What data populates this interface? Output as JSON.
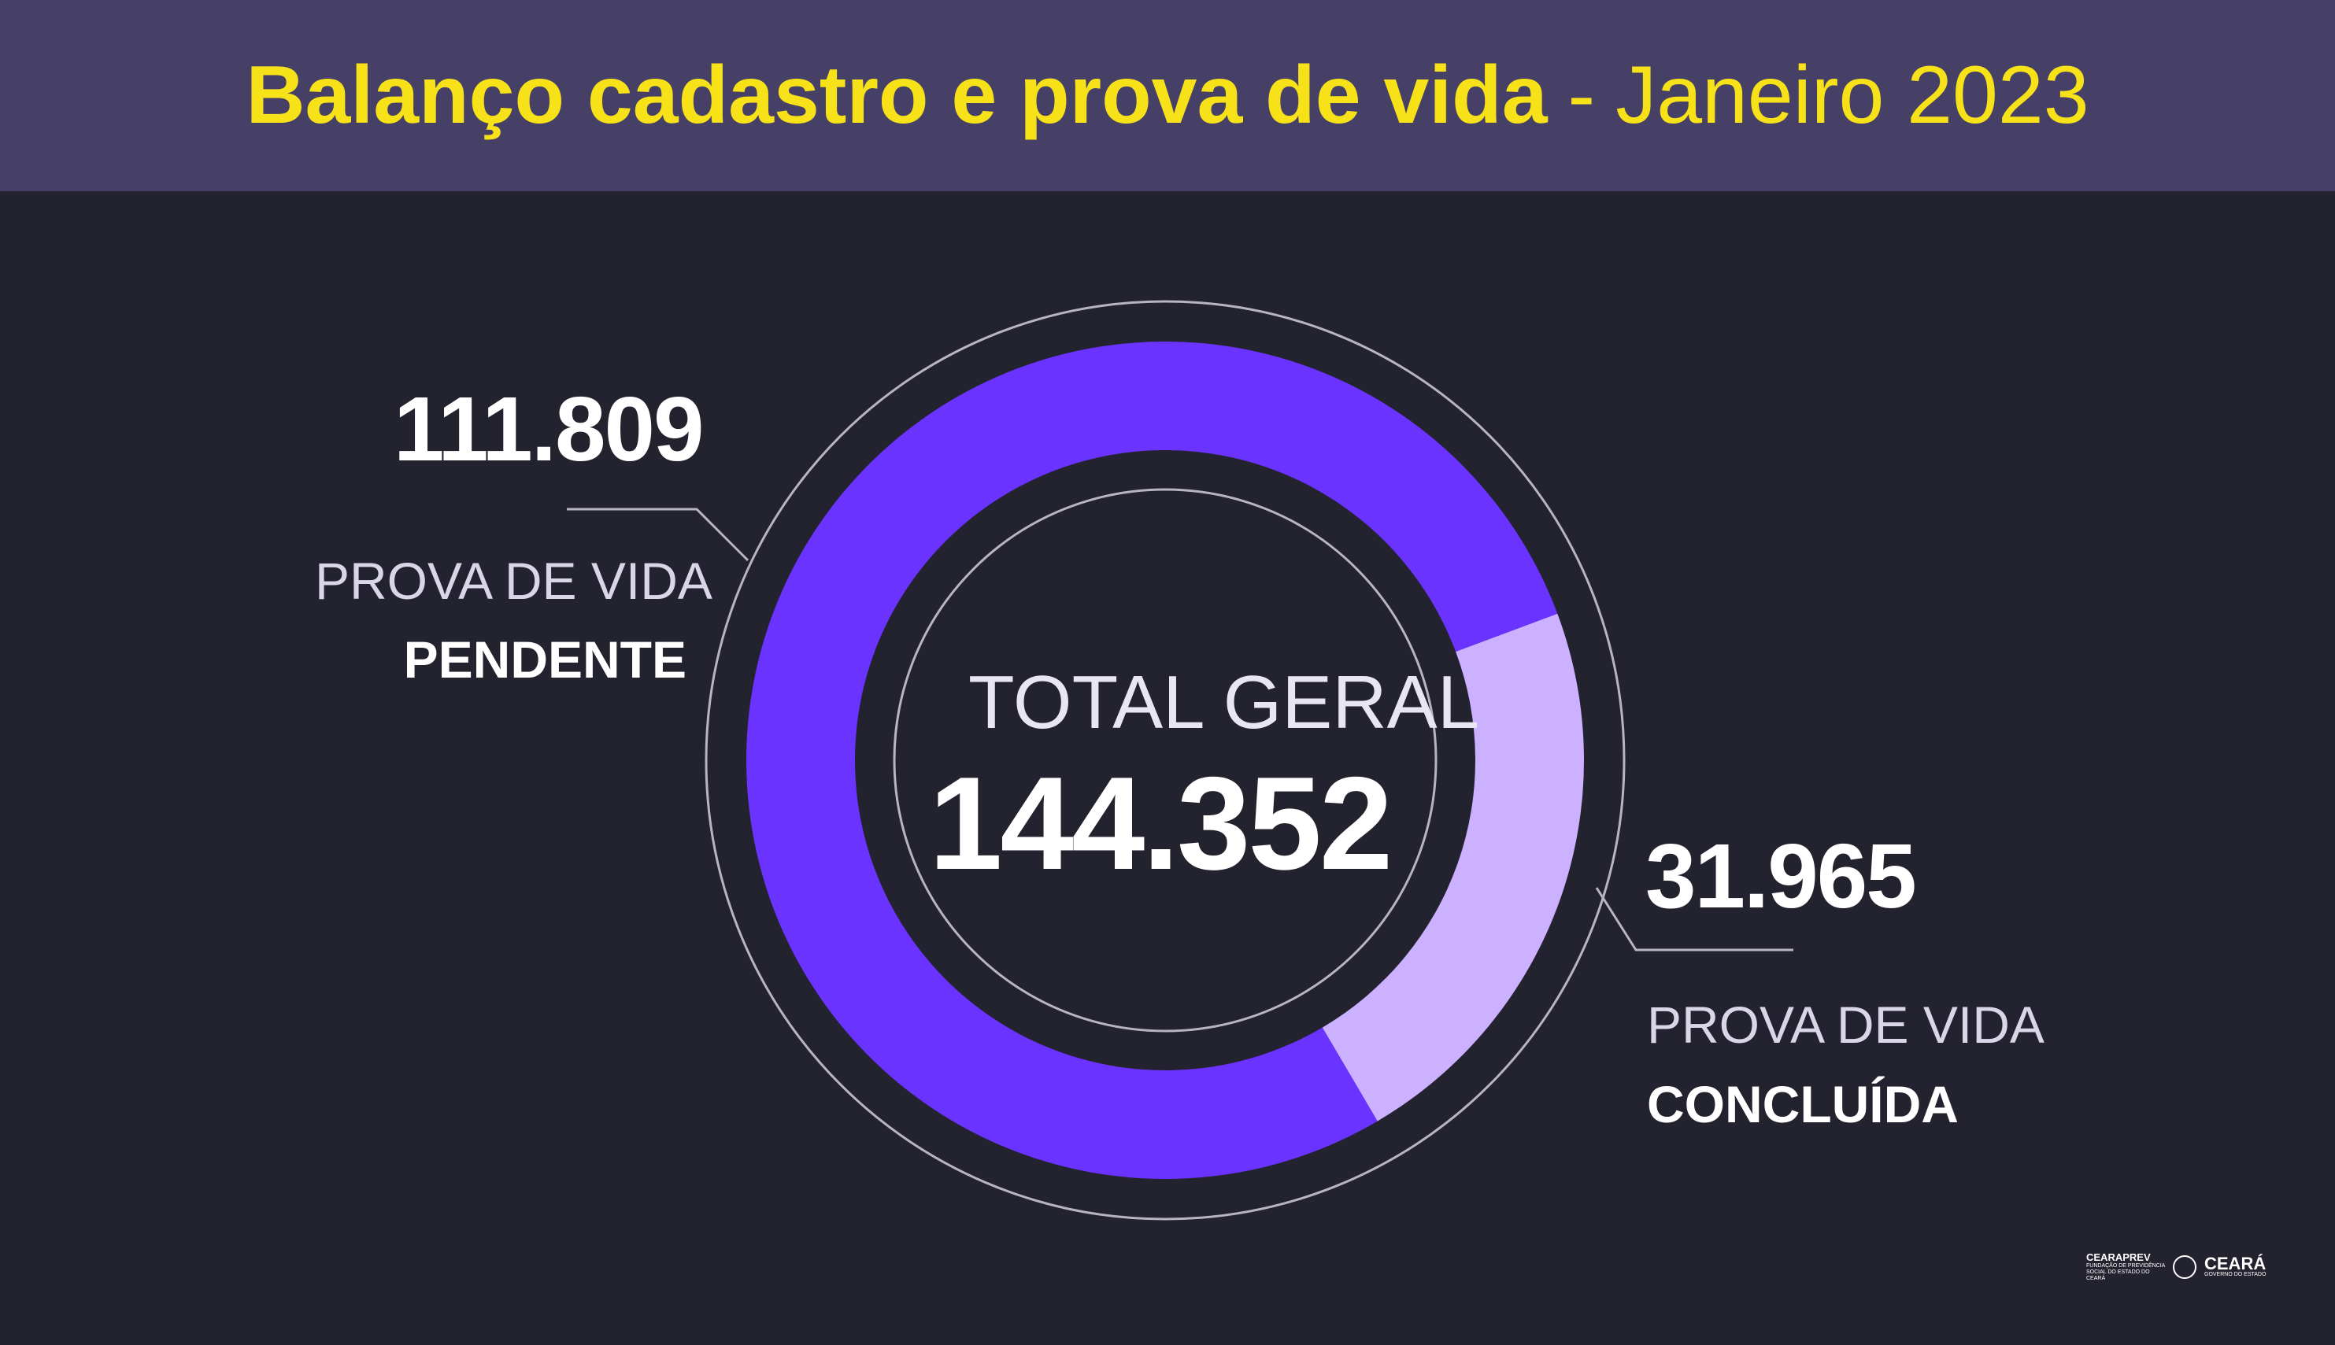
{
  "header": {
    "title_bold": "Balanço cadastro e prova de vida",
    "separator": "-",
    "title_light": "Janeiro 2023"
  },
  "colors": {
    "background": "#23232f",
    "header_bg": "#463f66",
    "title": "#f7e21a",
    "pendente": "#6b33ff",
    "concluida": "#cbb1ff",
    "ring_line": "#b7b4c4"
  },
  "chart_data": {
    "type": "pie",
    "variant": "donut",
    "center_label": "TOTAL GERAL",
    "total": 144352,
    "total_label": "144.352",
    "slices": [
      {
        "category": "PROVA DE VIDA",
        "status": "PENDENTE",
        "value": 111809,
        "value_label": "111.809",
        "color": "#6b33ff"
      },
      {
        "category": "PROVA DE VIDA",
        "status": "CONCLUÍDA",
        "value": 31965,
        "value_label": "31.965",
        "color": "#cbb1ff"
      }
    ]
  },
  "footer": {
    "logo1": {
      "name": "CEARAPREV",
      "sub": "FUNDAÇÃO DE PREVIDÊNCIA SOCIAL DO ESTADO DO CEARÁ"
    },
    "logo2": {
      "name": "CEARÁ",
      "sub": "GOVERNO DO ESTADO"
    }
  }
}
